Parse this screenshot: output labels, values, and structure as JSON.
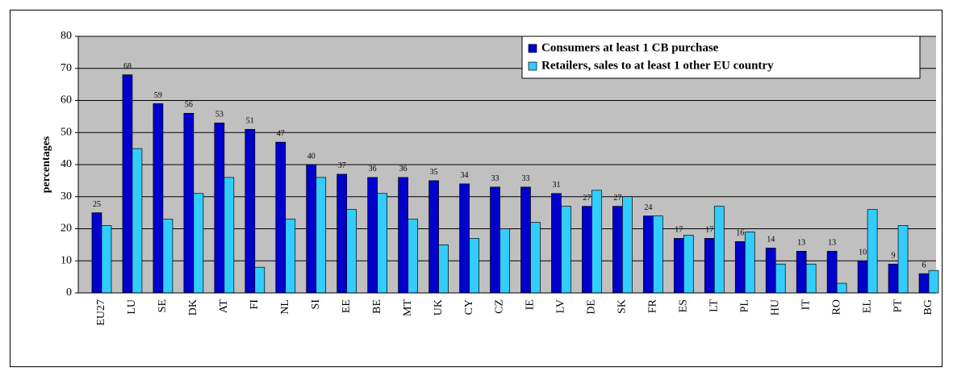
{
  "chart_data": {
    "type": "bar",
    "y_label": "percentages",
    "categories": [
      "EU27",
      "LU",
      "SE",
      "DK",
      "AT",
      "FI",
      "NL",
      "SI",
      "EE",
      "BE",
      "MT",
      "UK",
      "CY",
      "CZ",
      "IE",
      "LV",
      "DE",
      "SK",
      "FR",
      "ES",
      "LT",
      "PL",
      "HU",
      "IT",
      "RO",
      "EL",
      "PT",
      "BG"
    ],
    "series": [
      {
        "name": "Consumers at least 1 CB purchase",
        "color": "#0000cc",
        "values": [
          25,
          68,
          59,
          56,
          53,
          51,
          47,
          40,
          37,
          36,
          36,
          35,
          34,
          33,
          33,
          31,
          27,
          27,
          24,
          17,
          17,
          16,
          14,
          13,
          13,
          10,
          9,
          6
        ],
        "data_labels": true
      },
      {
        "name": "Retailers, sales to at least 1 other EU country",
        "color": "#33ccff",
        "values": [
          21,
          45,
          23,
          31,
          36,
          8,
          23,
          36,
          26,
          31,
          23,
          15,
          17,
          20,
          22,
          27,
          32,
          30,
          24,
          18,
          27,
          19,
          9,
          9,
          3,
          26,
          21,
          7
        ]
      }
    ],
    "ylim": [
      0,
      80
    ],
    "yticks": [
      0,
      10,
      20,
      30,
      40,
      50,
      60,
      70,
      80
    ],
    "grid": true,
    "legend": "top-right"
  }
}
